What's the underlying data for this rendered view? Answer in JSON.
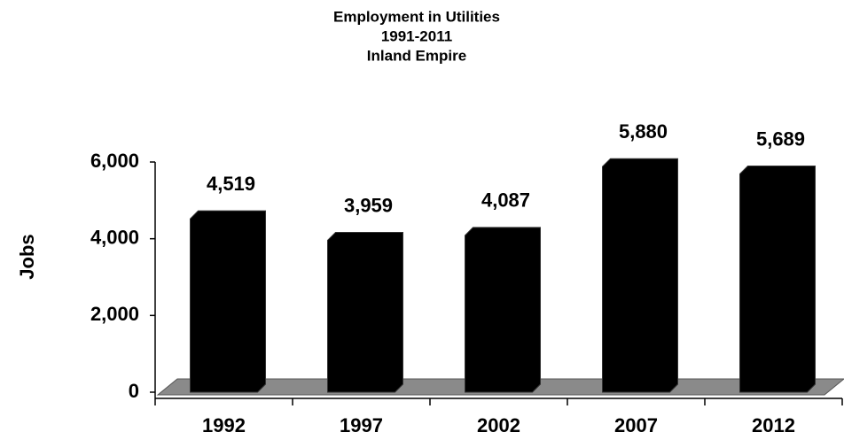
{
  "chart_data": {
    "type": "bar",
    "title": [
      "Employment in Utilities",
      "1991-2011",
      "Inland Empire"
    ],
    "y_label": "Jobs",
    "categories": [
      "1992",
      "1997",
      "2002",
      "2007",
      "2012"
    ],
    "values": [
      4519,
      3959,
      4087,
      5880,
      5689
    ],
    "value_labels": [
      "4,519",
      "3,959",
      "4,087",
      "5,880",
      "5,689"
    ],
    "color": "#000000",
    "ylim": [
      0,
      6000
    ],
    "yticks": [
      0,
      {
        "value": 2000,
        "label": "2,000"
      },
      {
        "value": 4000,
        "label": "4,000"
      },
      {
        "value": 6000,
        "label": "6,000"
      }
    ]
  }
}
